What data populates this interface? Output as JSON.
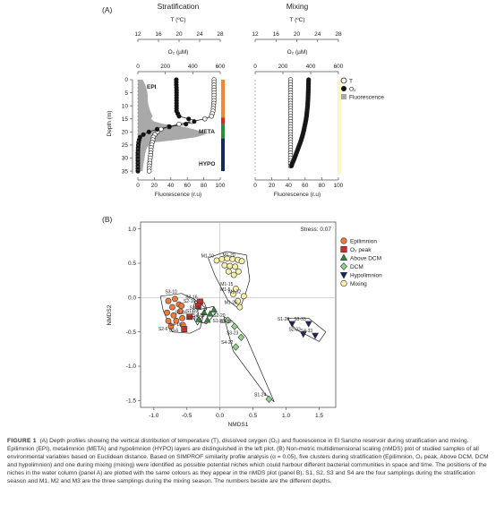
{
  "panelA": {
    "label": "(A)",
    "left": {
      "title": "Stratification",
      "temp_axis_label": "T (ºC)",
      "temp_ticks": [
        "12",
        "16",
        "20",
        "24",
        "28"
      ],
      "o2_axis_label": "O₂ (µM)",
      "o2_ticks": [
        "0",
        "200",
        "400",
        "600"
      ],
      "fluor_axis_label": "Fluorescence (r.u)",
      "fluor_ticks": [
        "0",
        "20",
        "40",
        "60",
        "80",
        "100"
      ],
      "depth_axis_label": "Depth (m)",
      "depth_ticks": [
        "0",
        "5",
        "10",
        "15",
        "20",
        "25",
        "30",
        "35"
      ],
      "layer_labels": [
        "EPI",
        "META",
        "HYPO"
      ]
    },
    "right": {
      "title": "Mixing",
      "temp_axis_label": "T (ºC)",
      "temp_ticks": [
        "12",
        "16",
        "20",
        "24",
        "28"
      ],
      "o2_axis_label": "O₂ (µM)",
      "o2_ticks": [
        "0",
        "200",
        "400",
        "600"
      ],
      "fluor_axis_label": "Fluorescence (r.u)",
      "fluor_ticks": [
        "0",
        "20",
        "40",
        "60",
        "80",
        "100"
      ]
    },
    "legend": [
      {
        "label": "T",
        "marker": "open-circle"
      },
      {
        "label": "O₂",
        "marker": "filled-circle"
      },
      {
        "label": "Fluorescence",
        "marker": "grey-square"
      }
    ],
    "layer_bar_colors": [
      "#f0883a",
      "#cf2b2b",
      "#2e8b3a",
      "#17285e"
    ],
    "mixing_bar_color": "#fdf6c0",
    "chart_data": {
      "type": "line",
      "stratification": {
        "temperature": {
          "depth": [
            0,
            2,
            4,
            6,
            8,
            10,
            12,
            14,
            15,
            16,
            17,
            18,
            19,
            20,
            21,
            22,
            24,
            26,
            28,
            30,
            32,
            34,
            35
          ],
          "values": [
            26.8,
            26.8,
            26.8,
            26.8,
            26.8,
            26.7,
            26.6,
            26.3,
            25.0,
            22.5,
            20.0,
            18.0,
            16.5,
            15.8,
            15.3,
            15.0,
            14.8,
            14.6,
            14.5,
            14.4,
            14.3,
            14.2,
            14.2
          ]
        },
        "oxygen": {
          "depth": [
            0,
            2,
            4,
            6,
            8,
            10,
            12,
            14,
            15,
            16,
            17,
            18,
            19,
            20,
            21,
            22,
            24,
            26,
            28,
            30,
            32,
            34,
            35
          ],
          "values": [
            280,
            280,
            282,
            282,
            282,
            282,
            282,
            300,
            370,
            410,
            350,
            230,
            140,
            80,
            40,
            15,
            5,
            2,
            0,
            0,
            0,
            0,
            0
          ]
        },
        "fluorescence": {
          "depth": [
            0,
            2,
            4,
            6,
            8,
            10,
            12,
            14,
            15,
            16,
            17,
            18,
            19,
            20,
            21,
            22,
            23,
            24,
            26,
            28,
            30,
            32,
            34,
            35
          ],
          "values": [
            6,
            9,
            11,
            12,
            12,
            13,
            15,
            18,
            16,
            20,
            32,
            55,
            68,
            78,
            82,
            70,
            48,
            20,
            11,
            9,
            8,
            7,
            6,
            6
          ]
        }
      },
      "mixing": {
        "temperature": {
          "depth": [
            0,
            5,
            10,
            15,
            20,
            25,
            30,
            33
          ],
          "values": [
            18.8,
            18.8,
            18.8,
            18.8,
            18.8,
            18.8,
            18.8,
            18.8
          ]
        },
        "oxygen": {
          "depth": [
            0,
            2,
            4,
            6,
            8,
            10,
            12,
            14,
            16,
            18,
            20,
            22,
            24,
            26,
            28,
            30,
            32,
            33
          ],
          "values": [
            385,
            384,
            383,
            382,
            380,
            378,
            374,
            370,
            364,
            356,
            348,
            338,
            326,
            312,
            298,
            284,
            268,
            262
          ]
        },
        "fluorescence": {
          "depth": [
            0,
            33
          ],
          "values": [
            0,
            0
          ]
        }
      },
      "ylabel": "Depth (m)",
      "ylim": [
        0,
        36
      ]
    }
  },
  "panelB": {
    "label": "(B)",
    "stress_label": "Stress: 0.07",
    "xlabel": "NMDS1",
    "ylabel": "NMDS2",
    "x_ticks": [
      "-1.0",
      "-0.5",
      "0.0",
      "0.5",
      "1.0",
      "1.5"
    ],
    "y_ticks": [
      "1.0",
      "0.5",
      "0.0",
      "-0.5",
      "-1.0",
      "-1.5"
    ],
    "legend": [
      {
        "label": "Epilimnion",
        "marker": "circle",
        "color": "#f07a3c"
      },
      {
        "label": "O₂ peak",
        "marker": "square",
        "color": "#cf2b2b"
      },
      {
        "label": "Above DCM",
        "marker": "triangle-up",
        "color": "#2e8b3a"
      },
      {
        "label": "DCM",
        "marker": "diamond",
        "color": "#8fd48a"
      },
      {
        "label": "Hypolimnion",
        "marker": "triangle-down",
        "color": "#17285e"
      },
      {
        "label": "Mixing",
        "marker": "circle",
        "color": "#f7f1a8"
      }
    ],
    "chart_data": {
      "type": "scatter",
      "xlim": [
        -1.2,
        1.75
      ],
      "ylim": [
        -1.6,
        1.1
      ],
      "series": [
        {
          "name": "Epilimnion",
          "points": [
            {
              "x": -0.78,
              "y": -0.05,
              "label": ""
            },
            {
              "x": -0.68,
              "y": -0.02,
              "label": ""
            },
            {
              "x": -0.72,
              "y": -0.14,
              "label": ""
            },
            {
              "x": -0.62,
              "y": -0.1,
              "label": ""
            },
            {
              "x": -0.8,
              "y": -0.22,
              "label": ""
            },
            {
              "x": -0.7,
              "y": -0.26,
              "label": ""
            },
            {
              "x": -0.6,
              "y": -0.2,
              "label": ""
            },
            {
              "x": -0.78,
              "y": -0.34,
              "label": ""
            },
            {
              "x": -0.66,
              "y": -0.34,
              "label": ""
            },
            {
              "x": -0.57,
              "y": -0.3,
              "label": ""
            },
            {
              "x": -0.74,
              "y": -0.42,
              "label": ""
            },
            {
              "x": -0.58,
              "y": -0.12,
              "label": ""
            },
            {
              "x": -0.56,
              "y": -0.4,
              "label": ""
            }
          ]
        },
        {
          "name": "O₂ peak",
          "points": [
            {
              "x": -0.3,
              "y": -0.06,
              "label": "S3-16"
            },
            {
              "x": -0.33,
              "y": -0.12,
              "label": "S2-16"
            },
            {
              "x": -0.46,
              "y": -0.28,
              "label": "S1-16"
            },
            {
              "x": -0.54,
              "y": -0.46,
              "label": "S4-16"
            }
          ]
        },
        {
          "name": "Above DCM",
          "points": [
            {
              "x": -0.24,
              "y": -0.22,
              "label": "S3-20"
            },
            {
              "x": -0.09,
              "y": -0.18,
              "label": ""
            },
            {
              "x": -0.15,
              "y": -0.24,
              "label": ""
            },
            {
              "x": -0.32,
              "y": -0.32,
              "label": ""
            },
            {
              "x": -0.19,
              "y": -0.33,
              "label": "S4-20"
            }
          ]
        },
        {
          "name": "DCM",
          "points": [
            {
              "x": 0.12,
              "y": -0.33,
              "label": "S2-20"
            },
            {
              "x": 0.22,
              "y": -0.42,
              "label": "S3-22"
            },
            {
              "x": 0.32,
              "y": -0.58,
              "label": "S3-23"
            },
            {
              "x": 0.24,
              "y": -0.72,
              "label": "S4-22"
            },
            {
              "x": 0.74,
              "y": -1.48,
              "label": "S1-24"
            }
          ]
        },
        {
          "name": "Hypolimnion",
          "points": [
            {
              "x": 1.09,
              "y": -0.38,
              "label": "S1-28"
            },
            {
              "x": 1.26,
              "y": -0.53,
              "label": "S2-33"
            },
            {
              "x": 1.34,
              "y": -0.38,
              "label": "S3-33"
            },
            {
              "x": 1.44,
              "y": -0.55,
              "label": "S4-33"
            }
          ]
        },
        {
          "name": "Mixing",
          "points": [
            {
              "x": -0.05,
              "y": 0.54,
              "label": "M1-10"
            },
            {
              "x": 0.03,
              "y": 0.56,
              "label": ""
            },
            {
              "x": 0.11,
              "y": 0.57,
              "label": ""
            },
            {
              "x": 0.19,
              "y": 0.56,
              "label": ""
            },
            {
              "x": 0.27,
              "y": 0.55,
              "label": "M1-20"
            },
            {
              "x": 0.33,
              "y": 0.53,
              "label": ""
            },
            {
              "x": 0.07,
              "y": 0.47,
              "label": ""
            },
            {
              "x": 0.15,
              "y": 0.46,
              "label": ""
            },
            {
              "x": 0.23,
              "y": 0.45,
              "label": ""
            },
            {
              "x": 0.13,
              "y": 0.38,
              "label": ""
            },
            {
              "x": 0.21,
              "y": 0.33,
              "label": ""
            },
            {
              "x": 0.28,
              "y": 0.38,
              "label": ""
            },
            {
              "x": 0.24,
              "y": 0.13,
              "label": "M1-15"
            },
            {
              "x": 0.2,
              "y": 0.05,
              "label": "M1-5"
            },
            {
              "x": 0.36,
              "y": 0.02,
              "label": "M1-32"
            },
            {
              "x": 0.27,
              "y": -0.05,
              "label": ""
            },
            {
              "x": 0.3,
              "y": -0.14,
              "label": "M1-26"
            }
          ]
        }
      ],
      "annotations": [
        "S3-10",
        "S1-10",
        "S2-10",
        "S2-6",
        "S3-6",
        "S1-20"
      ],
      "clusters": [
        {
          "x": [
            -0.9,
            -0.58,
            -0.38,
            -0.22,
            -0.3,
            -0.45,
            -0.72,
            -0.86
          ],
          "y": [
            0.02,
            0.06,
            -0.03,
            -0.15,
            -0.45,
            -0.52,
            -0.5,
            -0.18
          ]
        },
        {
          "x": [
            -0.38,
            -0.24,
            -0.2,
            -0.34,
            -0.42
          ],
          "y": [
            -0.05,
            -0.07,
            -0.16,
            -0.4,
            -0.26
          ]
        },
        {
          "x": [
            -0.34,
            -0.1,
            -0.06,
            -0.2,
            -0.3
          ],
          "y": [
            -0.18,
            -0.13,
            -0.22,
            -0.38,
            -0.36
          ]
        },
        {
          "x": [
            0.06,
            0.18,
            0.4,
            0.82,
            0.68,
            0.2
          ],
          "y": [
            -0.28,
            -0.34,
            -0.58,
            -1.52,
            -1.4,
            -0.78
          ]
        },
        {
          "x": [
            -0.18,
            0.1,
            0.4,
            0.45,
            0.38,
            0.3,
            0.12,
            -0.08
          ],
          "y": [
            0.58,
            0.67,
            0.62,
            0.26,
            0.04,
            -0.17,
            -0.04,
            0.33
          ]
        },
        {
          "x": [
            1.02,
            1.34,
            1.6,
            1.5,
            1.14
          ],
          "y": [
            -0.3,
            -0.3,
            -0.5,
            -0.64,
            -0.46
          ]
        }
      ]
    }
  },
  "caption": {
    "figure_label": "FIGURE 1",
    "text": "(A) Depth profiles showing the vertical distribution of temperature (T), dissolved oxygen (O₂) and fluorescence in El Sancho reservoir during stratification and mixing. Epilimnion (EPI), metalimnion (META) and hypolimnion (HYPO) layers are distinguished in the left plot. (B) Non-metric multidimensional scaling (nMDS) plot of studied samples of all environmental variables based on Euclidean distance. Based on SIMPROF similarity profile analysis (α = 0.05), five clusters during stratification (Epilimnion, O₂ peak, Above DCM, DCM and hypolimnion) and one during mixing (mixing) were identified as possible potential niches which could harbour different bacterial communities in space and time. The positions of the niches in the water column (panel A) are plotted with the same colours as they appear in the nMDS plot (panel B). S1, S2, S3 and S4 are the four samplings during the stratification season and M1, M2 and M3 are the three samplings during the mixing season. The numbers beside are the different depths."
  }
}
